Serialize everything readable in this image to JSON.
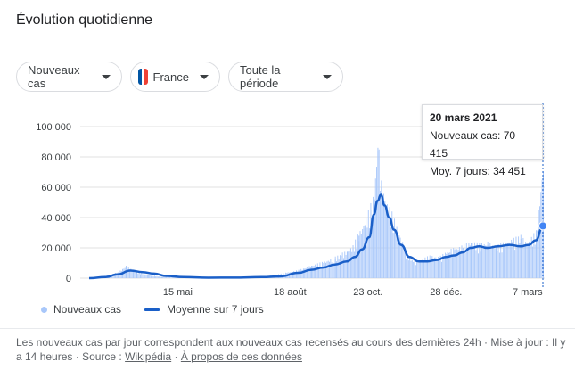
{
  "header": {
    "title": "Évolution quotidienne"
  },
  "filters": {
    "metric": "Nouveaux cas",
    "country": "France",
    "country_flag_colors": [
      "#0055a4",
      "#ffffff",
      "#ef4135"
    ],
    "period": "Toute la période"
  },
  "tooltip": {
    "date": "20 mars 2021",
    "new_cases": "Nouveaux cas: 70 415",
    "avg": "Moy. 7 jours: 34 451"
  },
  "legend": {
    "bars_label": "Nouveaux cas",
    "line_label": "Moyenne sur 7 jours"
  },
  "footer": {
    "text1": "Les nouveaux cas par jour correspondent aux nouveaux cas recensés au cours des dernières 24h",
    "sep": "·",
    "text2": "Mise à jour : Il y a 14 heures",
    "source_label": "Source :",
    "source_link": "Wikipédia",
    "about_link": "À propos de ces données"
  },
  "chart_data": {
    "type": "bar",
    "title": "",
    "ylim": [
      0,
      100000
    ],
    "y_ticks": [
      0,
      20000,
      40000,
      60000,
      80000,
      100000
    ],
    "y_tick_labels": [
      "0",
      "20 000",
      "40 000",
      "60 000",
      "80 000",
      "100 000"
    ],
    "x_tick_labels": [
      "15 mai",
      "18 août",
      "23 oct.",
      "28 déc.",
      "7 mars"
    ],
    "x_tick_dates": [
      "2020-05-15",
      "2020-08-18",
      "2020-10-23",
      "2020-12-28",
      "2021-03-07"
    ],
    "x_range": [
      "2020-03-01",
      "2021-03-20"
    ],
    "colors": {
      "bars": "#a8c7fa",
      "line": "#1a5fc8",
      "grid": "#e0e0e0"
    },
    "grid": true,
    "series": [
      {
        "name": "Nouveaux cas",
        "type": "bar",
        "x": [
          "2020-03-01",
          "2020-03-15",
          "2020-03-25",
          "2020-04-01",
          "2020-04-10",
          "2020-04-20",
          "2020-05-01",
          "2020-05-15",
          "2020-06-01",
          "2020-06-15",
          "2020-07-01",
          "2020-07-15",
          "2020-08-01",
          "2020-08-15",
          "2020-08-25",
          "2020-09-05",
          "2020-09-15",
          "2020-09-25",
          "2020-10-05",
          "2020-10-10",
          "2020-10-15",
          "2020-10-20",
          "2020-10-25",
          "2020-10-28",
          "2020-10-31",
          "2020-11-03",
          "2020-11-07",
          "2020-11-12",
          "2020-11-18",
          "2020-11-25",
          "2020-12-01",
          "2020-12-08",
          "2020-12-15",
          "2020-12-22",
          "2020-12-28",
          "2021-01-04",
          "2021-01-11",
          "2021-01-18",
          "2021-01-25",
          "2021-02-01",
          "2021-02-08",
          "2021-02-15",
          "2021-02-22",
          "2021-03-01",
          "2021-03-07",
          "2021-03-14",
          "2021-03-20"
        ],
        "values": [
          100,
          1500,
          3500,
          7500,
          4000,
          2000,
          800,
          500,
          400,
          400,
          600,
          800,
          1500,
          3500,
          5000,
          8000,
          10000,
          13000,
          17000,
          20000,
          28000,
          35000,
          45000,
          52000,
          86000,
          60000,
          48000,
          40000,
          28000,
          15000,
          10000,
          12000,
          14000,
          13000,
          16000,
          19000,
          20000,
          23000,
          21000,
          22000,
          20000,
          22000,
          24000,
          26000,
          22000,
          29000,
          70415
        ]
      },
      {
        "name": "Moyenne sur 7 jours",
        "type": "line",
        "x": [
          "2020-03-01",
          "2020-03-15",
          "2020-03-25",
          "2020-04-05",
          "2020-04-15",
          "2020-04-25",
          "2020-05-05",
          "2020-05-20",
          "2020-06-10",
          "2020-07-01",
          "2020-07-25",
          "2020-08-10",
          "2020-08-25",
          "2020-09-05",
          "2020-09-15",
          "2020-09-25",
          "2020-10-05",
          "2020-10-12",
          "2020-10-18",
          "2020-10-24",
          "2020-10-28",
          "2020-10-31",
          "2020-11-03",
          "2020-11-06",
          "2020-11-10",
          "2020-11-14",
          "2020-11-20",
          "2020-11-27",
          "2020-12-05",
          "2020-12-12",
          "2020-12-20",
          "2020-12-28",
          "2021-01-04",
          "2021-01-11",
          "2021-01-18",
          "2021-01-25",
          "2021-02-01",
          "2021-02-10",
          "2021-02-20",
          "2021-03-01",
          "2021-03-08",
          "2021-03-14",
          "2021-03-20"
        ],
        "values": [
          0,
          700,
          2500,
          5000,
          4000,
          3000,
          1500,
          700,
          300,
          400,
          700,
          1200,
          3500,
          5500,
          7000,
          9000,
          11000,
          14000,
          19000,
          27000,
          42000,
          51000,
          55000,
          48000,
          40000,
          32000,
          22000,
          14000,
          11000,
          11000,
          12000,
          14000,
          15000,
          17000,
          20000,
          21000,
          20000,
          21000,
          22000,
          21000,
          22000,
          25000,
          34451
        ]
      }
    ]
  }
}
